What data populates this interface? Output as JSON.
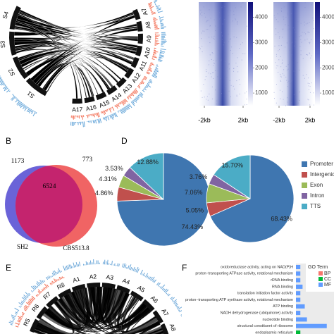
{
  "panel_labels": [
    "B",
    "D",
    "E",
    "F"
  ],
  "circos": [
    {
      "labels": [
        "S4",
        "S3",
        "S2",
        "S1",
        "A17",
        "A16",
        "A15",
        "A14",
        "A13",
        "A12",
        "A11",
        "A10",
        "A9",
        "A8",
        "A7"
      ]
    },
    {
      "labels": [
        "R5",
        "R6",
        "R7",
        "R8",
        "A1",
        "A2",
        "A3",
        "A4",
        "A5",
        "A6",
        "A7",
        "A8"
      ]
    }
  ],
  "heatmaps": [
    {
      "x_labels": [
        "-2kb",
        "2kb"
      ],
      "clim": [
        500,
        4600
      ],
      "cticks": [
        1000,
        2000,
        3000,
        4000
      ]
    },
    {
      "x_labels": [
        "-2kb",
        "2kb"
      ],
      "clim": [
        500,
        4600
      ],
      "cticks": [
        1000,
        2000,
        3000,
        4000
      ]
    }
  ],
  "venn": {
    "counts": [
      1173,
      6524,
      773
    ],
    "names": [
      "SH2",
      "CBS513.8"
    ]
  },
  "chart_data": [
    {
      "type": "pie",
      "values": [
        74.43,
        4.86,
        4.31,
        3.53,
        12.88
      ],
      "value_labels": [
        "74.43%",
        "4.86%",
        "4.31%",
        "3.53%",
        "12.88%"
      ],
      "colors": [
        "#3f76b0",
        "#c0504d",
        "#9bbb59",
        "#8064a2",
        "#4bacc6"
      ]
    },
    {
      "type": "pie",
      "categories": [
        "Promoter",
        "Intergenic",
        "Exon",
        "Intron",
        "TTS"
      ],
      "values": [
        68.43,
        5.05,
        7.06,
        3.76,
        15.7
      ],
      "value_labels": [
        "68.43%",
        "5.05%",
        "7.06%",
        "3.76%",
        "15.70%"
      ],
      "colors": [
        "#3f76b0",
        "#c0504d",
        "#9bbb59",
        "#8064a2",
        "#4bacc6"
      ],
      "legend": "right"
    },
    {
      "type": "hbar",
      "categories": [
        "oxidoreductase activity, acting on NAD(P)H",
        "proton−transporting ATPase activity, rotational mechanism",
        "rRNA binding",
        "RNA binding",
        "translation initiation factor activity",
        "proton−transporting ATP synthase activity, rotational mechanism",
        "ATP binding",
        "NADH dehydrogenase (ubiquinone) activity",
        "nucleotide binding",
        "structural constituent of ribosome",
        "endoplasmic reticulum"
      ],
      "values": [
        2,
        2,
        2,
        3,
        2,
        2,
        4,
        2,
        5,
        14,
        2
      ],
      "groups": [
        "MF",
        "MF",
        "MF",
        "MF",
        "MF",
        "MF",
        "MF",
        "MF",
        "MF",
        "MF",
        "CC"
      ],
      "xlim": [
        0,
        16
      ],
      "legend": {
        "title": "GO Term",
        "entries": [
          {
            "name": "BP",
            "color": "#f8766d"
          },
          {
            "name": "CC",
            "color": "#00ba38"
          },
          {
            "name": "MF",
            "color": "#619cff"
          }
        ]
      }
    }
  ]
}
